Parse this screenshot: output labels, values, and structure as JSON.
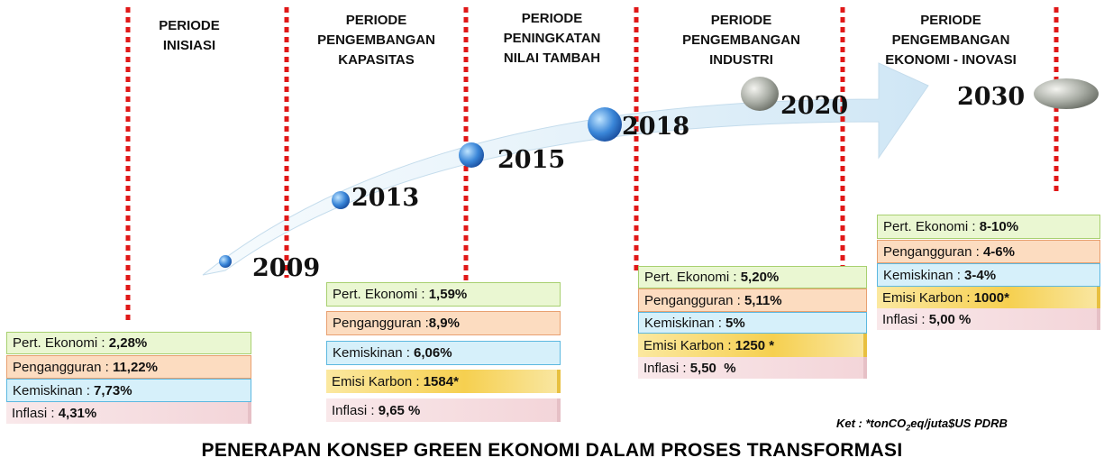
{
  "periods": [
    {
      "lines": [
        "PERIODE",
        "INISIASI"
      ]
    },
    {
      "lines": [
        "PERIODE",
        "PENGEMBANGAN",
        "KAPASITAS"
      ]
    },
    {
      "lines": [
        "PERIODE",
        "PENINGKATAN",
        "NILAI TAMBAH"
      ]
    },
    {
      "lines": [
        "PERIODE",
        "PENGEMBANGAN",
        "INDUSTRI"
      ]
    },
    {
      "lines": [
        "PERIODE",
        "PENGEMBANGAN",
        "EKONOMI - INOVASI"
      ]
    }
  ],
  "years": [
    "2009",
    "2013",
    "2015",
    "2018",
    "2020",
    "2030"
  ],
  "groups": [
    {
      "rows": [
        {
          "label": "Pert. Ekonomi : ",
          "value": "2,28%"
        },
        {
          "label": "Pengangguran : ",
          "value": "11,22%"
        },
        {
          "label": "Kemiskinan : ",
          "value": "7,73%"
        },
        {
          "label": "Inflasi : ",
          "value": "4,31%"
        }
      ]
    },
    {
      "rows": [
        {
          "label": "Pert. Ekonomi : ",
          "value": "1,59%"
        },
        {
          "label": "Pengangguran :",
          "value": "8,9%"
        },
        {
          "label": "Kemiskinan : ",
          "value": "6,06%"
        },
        {
          "label": "Emisi Karbon : ",
          "value": "1584*"
        },
        {
          "label": "Inflasi : ",
          "value": "9,65 %"
        }
      ]
    },
    {
      "rows": [
        {
          "label": "Pert. Ekonomi : ",
          "value": "5,20%"
        },
        {
          "label": "Pengangguran : ",
          "value": "5,11%"
        },
        {
          "label": "Kemiskinan : ",
          "value": "5%"
        },
        {
          "label": "Emisi Karbon : ",
          "value": "1250 *"
        },
        {
          "label": "Inflasi : ",
          "value": "5,50  %"
        }
      ]
    },
    {
      "rows": [
        {
          "label": "Pert. Ekonomi : ",
          "value": "8-10%"
        },
        {
          "label": "Pengangguran : ",
          "value": "4-6%"
        },
        {
          "label": "Kemiskinan : ",
          "value": "3-4%"
        },
        {
          "label": "Emisi Karbon : ",
          "value": "1000*"
        },
        {
          "label": "Inflasi : ",
          "value": "5,00 %"
        }
      ]
    }
  ],
  "note": {
    "prefix": "Ket : *tonCO",
    "sub": "2",
    "suffix": "eq/juta$US PDRB"
  },
  "footer": {
    "title": "PENERAPAN KONSEP GREEN EKONOMI DALAM PROSES TRANSFORMASI"
  }
}
